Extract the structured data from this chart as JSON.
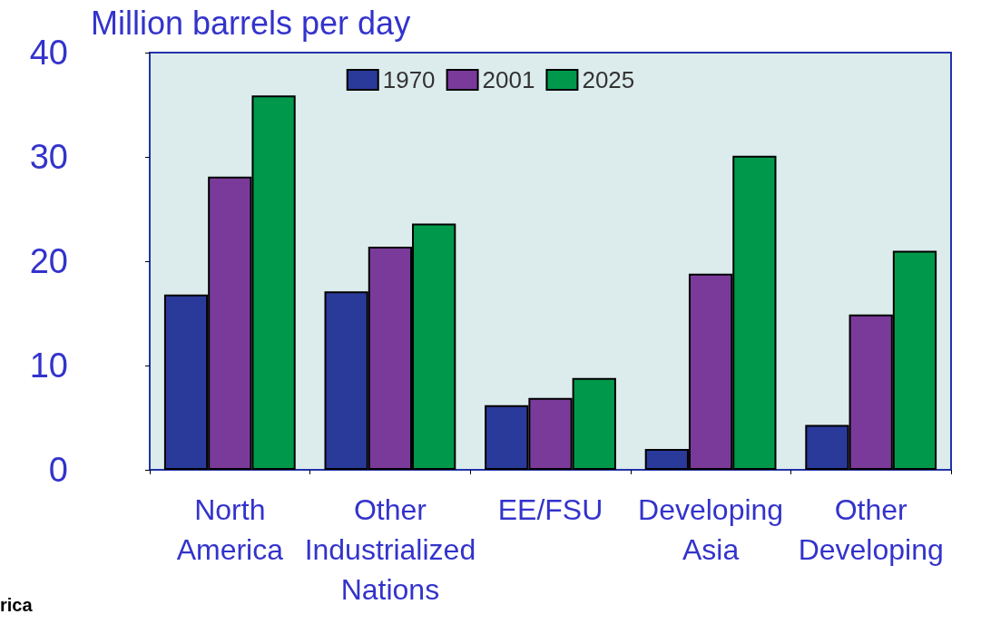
{
  "chart_data": {
    "type": "bar",
    "ylabel": "Million barrels per day",
    "categories": [
      "North\nAmerica",
      "Other\nIndustrialized\nNations",
      "EE/FSU",
      "Developing\nAsia",
      "Other\nDeveloping"
    ],
    "series": [
      {
        "name": "1970",
        "color": "#2a3a9a",
        "values": [
          16.8,
          17.1,
          6.2,
          2.0,
          4.3
        ]
      },
      {
        "name": "2001",
        "color": "#7a3a9a",
        "values": [
          28.1,
          21.4,
          6.9,
          18.8,
          14.9
        ]
      },
      {
        "name": "2025",
        "color": "#00994c",
        "values": [
          35.9,
          23.6,
          8.8,
          30.1,
          21.0
        ]
      }
    ],
    "ylim": [
      0,
      40
    ],
    "yticks": [
      0,
      10,
      20,
      30,
      40
    ],
    "grid": false,
    "legend": "top",
    "annotations": [
      "rica"
    ]
  }
}
